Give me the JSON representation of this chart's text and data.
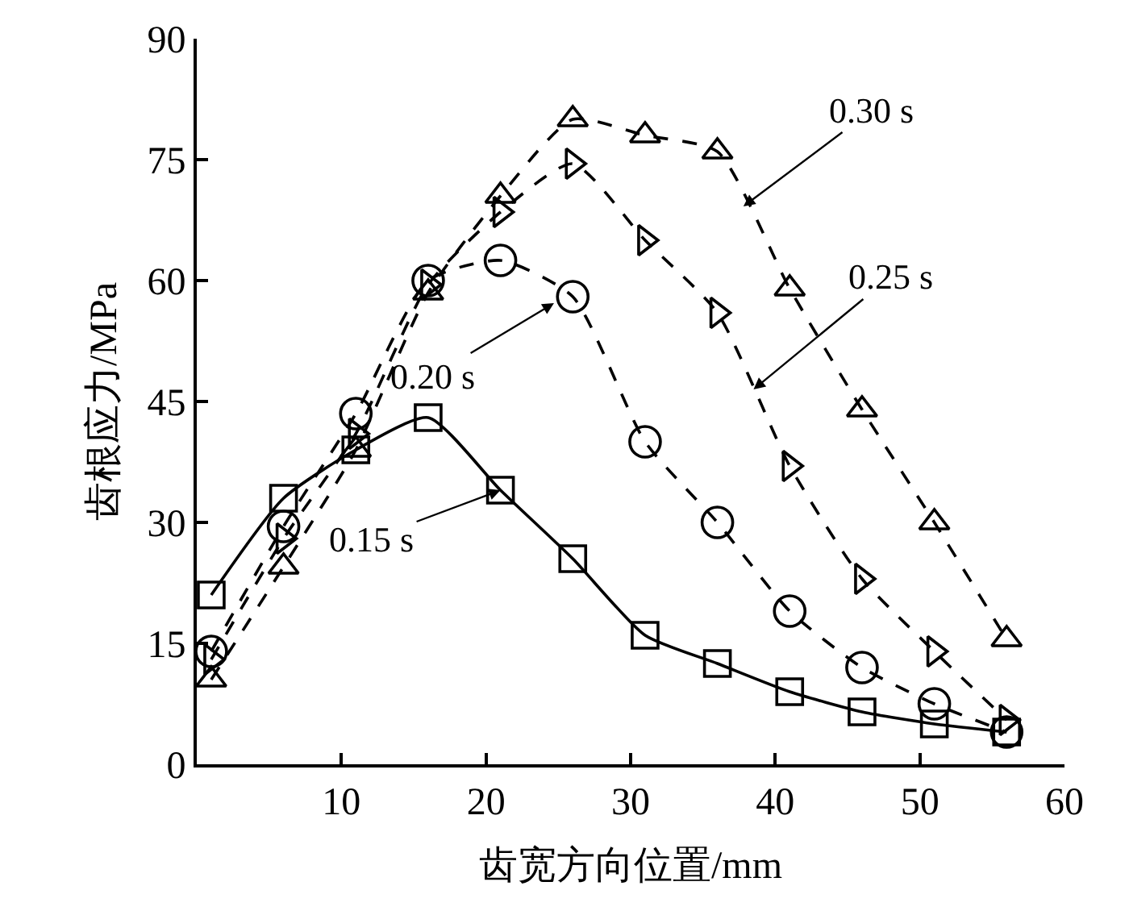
{
  "chart_data": {
    "type": "line",
    "xlabel": "齿宽方向位置/mm",
    "ylabel": "齿根应力/MPa",
    "xlim": [
      0,
      60
    ],
    "xticks": [
      {
        "value": 0,
        "label": null
      },
      10,
      20,
      30,
      40,
      50,
      60
    ],
    "ylim": [
      0,
      90
    ],
    "yticks": [
      0,
      15,
      30,
      45,
      60,
      75,
      90
    ],
    "legend": false,
    "series": [
      {
        "color": "#000000",
        "marker": "square",
        "line_style": "solid",
        "x": [
          1,
          6,
          11,
          16,
          21,
          26,
          31,
          36,
          41,
          46,
          51,
          56
        ],
        "values": [
          21,
          33,
          39,
          43,
          34,
          25.5,
          16,
          12.5,
          9,
          6.5,
          5,
          4
        ]
      },
      {
        "color": "#000000",
        "marker": "circle",
        "line_style": "dashed",
        "x": [
          1,
          6,
          11,
          16,
          21,
          26,
          31,
          36,
          41,
          46,
          51,
          56
        ],
        "values": [
          14,
          29.5,
          43.5,
          60,
          62.5,
          58,
          40,
          30,
          19,
          12,
          7.5,
          4
        ]
      },
      {
        "color": "#000000",
        "marker": "triangle-right",
        "line_style": "dashed",
        "x": [
          1,
          6,
          11,
          16,
          21,
          26,
          31,
          36,
          41,
          46,
          51,
          56
        ],
        "values": [
          13,
          28,
          41,
          59.5,
          68.5,
          74.5,
          65,
          56,
          37,
          23,
          14,
          5.5
        ]
      },
      {
        "color": "#000000",
        "marker": "triangle",
        "line_style": "dashed",
        "x": [
          1,
          6,
          11,
          16,
          21,
          26,
          31,
          36,
          41,
          46,
          51,
          56
        ],
        "values": [
          10.5,
          24.5,
          39,
          58.5,
          70.5,
          80,
          78,
          76,
          59,
          44,
          30,
          15.5
        ]
      }
    ],
    "annotations": [
      {
        "text": "0.15 s",
        "x": 21,
        "y": 34
      },
      {
        "text": "0.20 s",
        "x": 24.7,
        "y": 57.2
      },
      {
        "text": "0.25 s",
        "x": 38.5,
        "y": 46.5
      },
      {
        "text": "0.30 s",
        "x": 37.8,
        "y": 69.2
      }
    ]
  }
}
